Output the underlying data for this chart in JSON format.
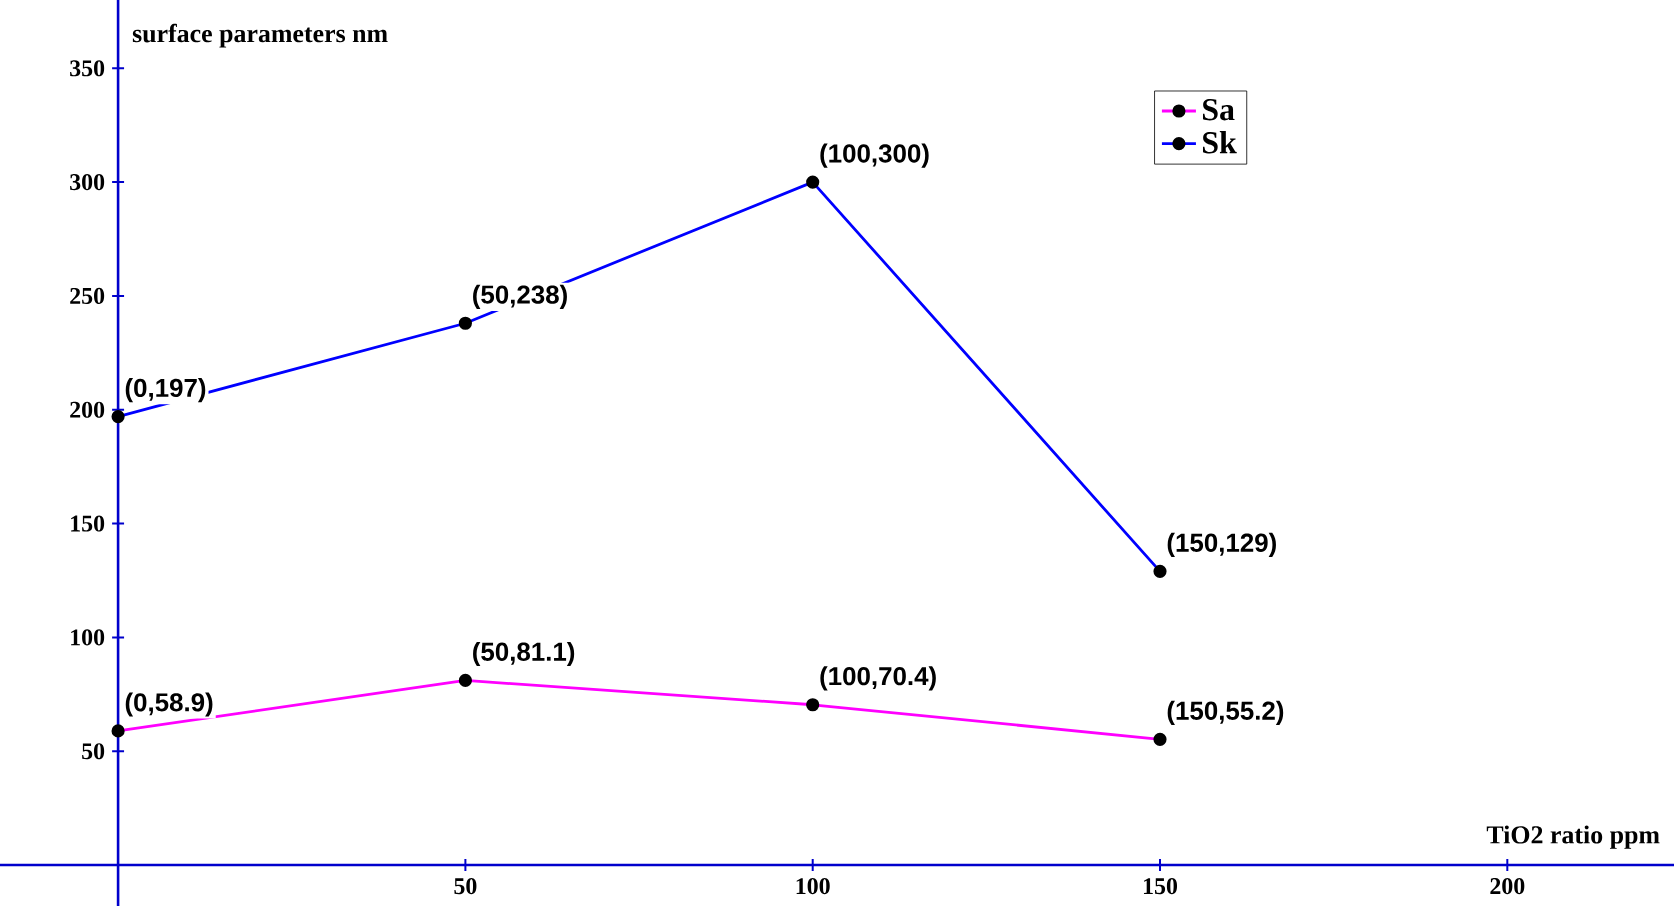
{
  "chart_data": {
    "type": "line",
    "xlabel": "TiO2 ratio ppm",
    "ylabel": "surface parameters nm",
    "x": [
      0,
      50,
      100,
      150
    ],
    "series": [
      {
        "name": "Sa",
        "color": "#ff00ff",
        "values": [
          58.9,
          81.1,
          70.4,
          55.2
        ]
      },
      {
        "name": "Sk",
        "color": "#0000ff",
        "values": [
          197,
          238,
          300,
          129
        ]
      }
    ],
    "xlim": [
      -17,
      224
    ],
    "ylim": [
      -18,
      380
    ],
    "xticks": [
      50,
      100,
      150,
      200
    ],
    "yticks": [
      50,
      100,
      150,
      200,
      250,
      300,
      350
    ],
    "marker": "circle",
    "grid": false,
    "legend": "top right",
    "annotations": [
      {
        "text": "(0,58.9)",
        "x": 0,
        "y": 58.9
      },
      {
        "text": "(50,81.1)",
        "x": 50,
        "y": 81.1
      },
      {
        "text": "(100,70.4)",
        "x": 100,
        "y": 70.4
      },
      {
        "text": "(150,55.2)",
        "x": 150,
        "y": 55.2
      },
      {
        "text": "(0,197)",
        "x": 0,
        "y": 197
      },
      {
        "text": "(50,238)",
        "x": 50,
        "y": 238
      },
      {
        "text": "(100,300)",
        "x": 100,
        "y": 300
      },
      {
        "text": "(150,129)",
        "x": 150,
        "y": 129
      }
    ]
  }
}
